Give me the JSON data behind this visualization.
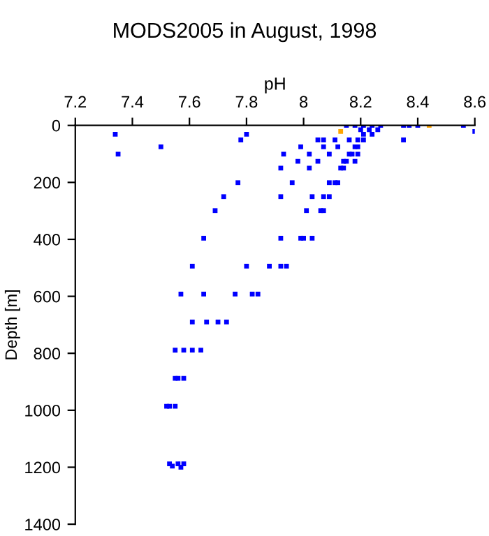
{
  "chart_data": {
    "type": "scatter",
    "title": "MODS2005 in August, 1998",
    "xlabel": "pH",
    "ylabel": "Depth [m]",
    "xlim": [
      7.2,
      8.6
    ],
    "xticks": [
      7.2,
      7.4,
      7.6,
      7.8,
      8,
      8.2,
      8.4,
      8.6
    ],
    "ylim": [
      1400,
      0
    ],
    "yticks": [
      0,
      200,
      400,
      600,
      800,
      1000,
      1200,
      1400
    ],
    "grid": false,
    "marker": "square",
    "series": [
      {
        "color": "#0000ff",
        "x": [
          8.15,
          8.18,
          8.21,
          8.24,
          8.27,
          8.35,
          8.37,
          8.4,
          8.56,
          8.2,
          8.23,
          8.26,
          8.6,
          7.34,
          7.8,
          8.21,
          8.24,
          7.78,
          8.05,
          8.07,
          8.11,
          8.16,
          8.19,
          8.21,
          8.35,
          7.5,
          7.99,
          8.07,
          8.12,
          8.18,
          8.19,
          7.35,
          7.93,
          8.02,
          8.09,
          8.16,
          8.17,
          8.19,
          7.98,
          8.05,
          8.14,
          8.15,
          8.18,
          7.92,
          8.02,
          8.13,
          8.14,
          7.77,
          7.96,
          8.09,
          8.11,
          8.12,
          7.72,
          7.92,
          8.03,
          8.07,
          8.09,
          7.69,
          8.01,
          8.06,
          8.07,
          7.65,
          7.92,
          7.99,
          8.0,
          8.03,
          7.61,
          7.8,
          7.88,
          7.92,
          7.94,
          7.57,
          7.65,
          7.76,
          7.82,
          7.84,
          7.61,
          7.66,
          7.7,
          7.73,
          7.55,
          7.58,
          7.61,
          7.64,
          7.55,
          7.56,
          7.58,
          7.52,
          7.53,
          7.55,
          7.53,
          7.54,
          7.56,
          7.57,
          7.58
        ],
        "values": [
          0,
          0,
          0,
          0,
          0,
          0,
          0,
          0,
          0,
          15,
          15,
          15,
          21,
          31,
          31,
          31,
          31,
          51,
          51,
          51,
          51,
          51,
          51,
          51,
          51,
          75,
          75,
          75,
          75,
          75,
          75,
          101,
          101,
          101,
          101,
          101,
          101,
          101,
          126,
          126,
          126,
          126,
          126,
          150,
          150,
          150,
          150,
          201,
          201,
          201,
          201,
          201,
          250,
          250,
          250,
          250,
          250,
          299,
          299,
          299,
          299,
          396,
          396,
          396,
          396,
          396,
          494,
          494,
          494,
          494,
          494,
          592,
          592,
          592,
          592,
          592,
          690,
          690,
          690,
          690,
          789,
          789,
          789,
          789,
          888,
          888,
          888,
          986,
          986,
          986,
          1188,
          1196,
          1188,
          1200,
          1188
        ]
      },
      {
        "color": "#ffa500",
        "x": [
          8.44,
          8.13
        ],
        "values": [
          0,
          21
        ]
      }
    ]
  }
}
